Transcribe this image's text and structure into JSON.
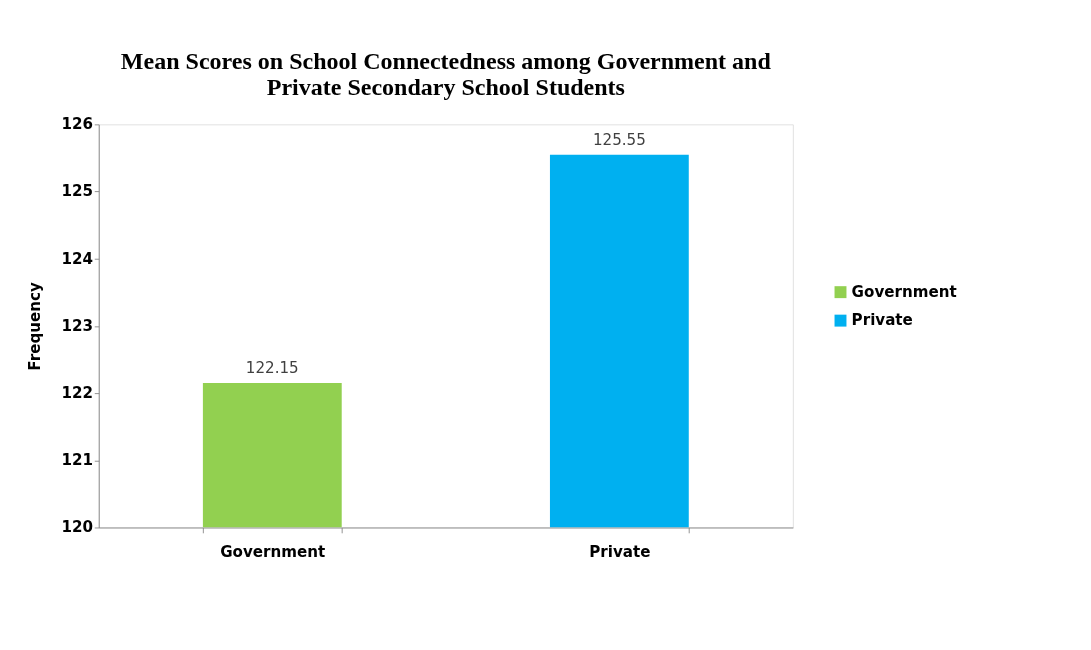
{
  "chart_data": {
    "type": "bar",
    "title": [
      "Mean Scores on School Connectedness among Government and",
      "Private Secondary School Students"
    ],
    "ylabel": "Frequency",
    "categories": [
      "Government",
      "Private"
    ],
    "series": [
      {
        "name": "Government",
        "color": "#92d050",
        "values": [
          122.15,
          null
        ]
      },
      {
        "name": "Private",
        "color": "#00b0f0",
        "values": [
          null,
          125.55
        ]
      }
    ],
    "ylim": [
      120,
      126
    ],
    "yticks": [
      120,
      121,
      122,
      123,
      124,
      125,
      126
    ],
    "grid": false,
    "legend": "right",
    "data_labels": true
  }
}
